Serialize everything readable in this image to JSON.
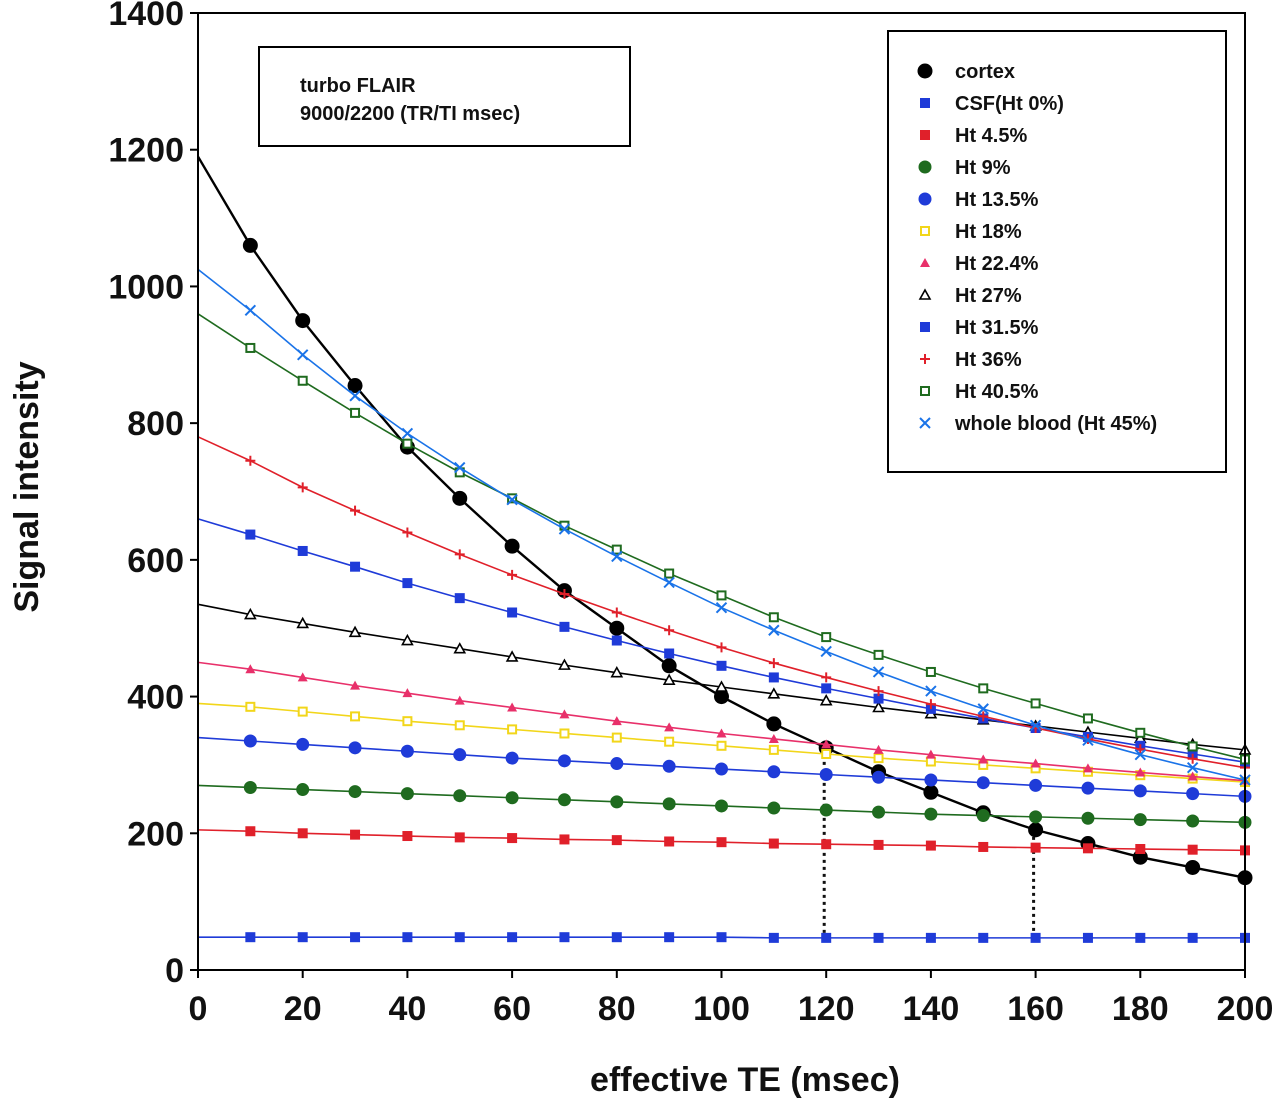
{
  "chart_data": {
    "type": "line",
    "annotation": [
      "turbo FLAIR",
      "9000/2200 (TR/TI msec)"
    ],
    "xlabel": "effective TE (msec)",
    "ylabel": "Signal intensity",
    "xlim": [
      0,
      200
    ],
    "ylim": [
      0,
      1400
    ],
    "xticks": [
      0,
      20,
      40,
      60,
      80,
      100,
      120,
      140,
      160,
      180,
      200
    ],
    "yticks": [
      0,
      200,
      400,
      600,
      800,
      1000,
      1200,
      1400
    ],
    "grid": false,
    "legend_position": "top-right",
    "x": [
      10,
      20,
      30,
      40,
      50,
      60,
      70,
      80,
      90,
      100,
      110,
      120,
      130,
      140,
      150,
      160,
      170,
      180,
      190,
      200
    ],
    "series": [
      {
        "name": "cortex",
        "color": "#000000",
        "marker": "circle-filled",
        "intercept": 1190,
        "values": [
          1060,
          950,
          855,
          765,
          690,
          620,
          555,
          500,
          445,
          400,
          360,
          325,
          290,
          260,
          230,
          205,
          185,
          165,
          150,
          135
        ]
      },
      {
        "name": "CSF(Ht 0%)",
        "color": "#1f3bd8",
        "marker": "square-filled",
        "intercept": 48,
        "values": [
          48,
          48,
          48,
          48,
          48,
          48,
          48,
          48,
          48,
          48,
          47,
          47,
          47,
          47,
          47,
          47,
          47,
          47,
          47,
          47
        ]
      },
      {
        "name": "Ht 4.5%",
        "color": "#e0202a",
        "marker": "square-filled",
        "intercept": 205,
        "values": [
          203,
          200,
          198,
          196,
          194,
          193,
          191,
          190,
          188,
          187,
          185,
          184,
          183,
          182,
          180,
          179,
          178,
          177,
          176,
          175
        ]
      },
      {
        "name": "Ht 9%",
        "color": "#1f6b1f",
        "marker": "circle-filled",
        "intercept": 270,
        "values": [
          267,
          264,
          261,
          258,
          255,
          252,
          249,
          246,
          243,
          240,
          237,
          234,
          231,
          228,
          226,
          224,
          222,
          220,
          218,
          216
        ]
      },
      {
        "name": "Ht 13.5%",
        "color": "#1f3bd8",
        "marker": "circle-filled",
        "intercept": 340,
        "values": [
          335,
          330,
          325,
          320,
          315,
          310,
          306,
          302,
          298,
          294,
          290,
          286,
          282,
          278,
          274,
          270,
          266,
          262,
          258,
          254
        ]
      },
      {
        "name": "Ht 18%",
        "color": "#f2d61a",
        "marker": "square-open",
        "intercept": 390,
        "values": [
          385,
          378,
          371,
          364,
          358,
          352,
          346,
          340,
          334,
          328,
          322,
          316,
          310,
          305,
          300,
          295,
          290,
          285,
          280,
          275
        ]
      },
      {
        "name": "Ht 22.4%",
        "color": "#e8306a",
        "marker": "triangle-filled",
        "intercept": 450,
        "values": [
          440,
          428,
          416,
          405,
          394,
          384,
          374,
          364,
          355,
          346,
          338,
          330,
          322,
          315,
          308,
          302,
          295,
          289,
          283,
          277
        ]
      },
      {
        "name": "Ht 27%",
        "color": "#000000",
        "marker": "triangle-open",
        "intercept": 535,
        "values": [
          520,
          507,
          494,
          482,
          470,
          458,
          446,
          435,
          424,
          414,
          404,
          394,
          384,
          375,
          366,
          357,
          348,
          339,
          330,
          322
        ]
      },
      {
        "name": "Ht 31.5%",
        "color": "#1f3bd8",
        "marker": "square-filled",
        "intercept": 660,
        "values": [
          637,
          613,
          590,
          566,
          544,
          523,
          502,
          482,
          463,
          445,
          428,
          412,
          397,
          382,
          368,
          354,
          341,
          328,
          316,
          304
        ]
      },
      {
        "name": "Ht 36%",
        "color": "#e0202a",
        "marker": "plus",
        "intercept": 780,
        "values": [
          745,
          706,
          672,
          640,
          608,
          578,
          550,
          523,
          497,
          472,
          449,
          428,
          408,
          389,
          371,
          354,
          338,
          323,
          309,
          296
        ]
      },
      {
        "name": "Ht 40.5%",
        "color": "#1f6b1f",
        "marker": "square-open",
        "intercept": 960,
        "values": [
          910,
          862,
          815,
          770,
          728,
          690,
          650,
          615,
          580,
          548,
          516,
          487,
          461,
          436,
          412,
          390,
          368,
          347,
          327,
          308
        ]
      },
      {
        "name": "whole blood (Ht 45%)",
        "color": "#1a73e8",
        "marker": "x",
        "intercept": 1025,
        "values": [
          965,
          900,
          840,
          785,
          735,
          688,
          645,
          605,
          567,
          530,
          497,
          466,
          436,
          408,
          382,
          358,
          336,
          315,
          296,
          278
        ]
      }
    ],
    "reference_lines": [
      {
        "x": 120,
        "from_series": "cortex",
        "style": "dotted"
      },
      {
        "x": 160,
        "from_series": "cortex",
        "style": "dotted"
      }
    ]
  }
}
